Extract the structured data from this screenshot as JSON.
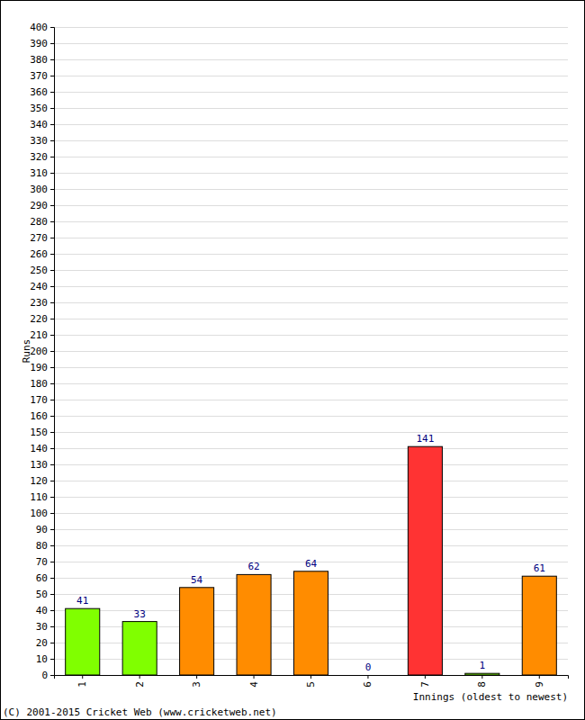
{
  "chart_data": {
    "type": "bar",
    "x_label": "Innings (oldest to newest)",
    "y_label": "Runs",
    "annotation": "(C) 2001-2015 Cricket Web (www.cricketweb.net)",
    "categories": [
      "1",
      "2",
      "3",
      "4",
      "5",
      "6",
      "7",
      "8",
      "9"
    ],
    "values": [
      41,
      33,
      54,
      62,
      64,
      0,
      141,
      1,
      61
    ],
    "colors": [
      "#80ff00",
      "#80ff00",
      "#ff8c00",
      "#ff8c00",
      "#ff8c00",
      "#80ff00",
      "#ff3333",
      "#80ff00",
      "#ff8c00"
    ],
    "ylim": [
      0,
      400
    ],
    "yticks": [
      0,
      10,
      20,
      30,
      40,
      50,
      60,
      70,
      80,
      90,
      100,
      110,
      120,
      130,
      140,
      150,
      160,
      170,
      180,
      190,
      200,
      210,
      220,
      230,
      240,
      250,
      260,
      270,
      280,
      290,
      300,
      310,
      320,
      330,
      340,
      350,
      360,
      370,
      380,
      390,
      400
    ],
    "grid": true,
    "data_labels": true
  }
}
